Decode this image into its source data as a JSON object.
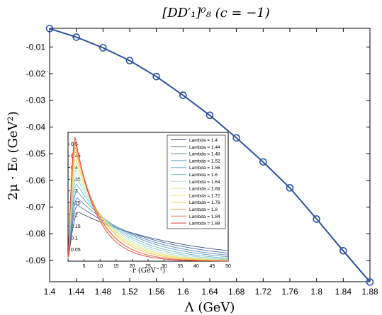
{
  "chart_data": [
    {
      "type": "line",
      "title": "[DD′₁]⁰₈ (c = −1)",
      "xlabel": "Λ (GeV)",
      "ylabel": "2μ · E₀ (GeV²)",
      "xlim": [
        1.4,
        1.88
      ],
      "ylim": [
        -0.098,
        -0.003
      ],
      "xticks": [
        "1.4",
        "1.44",
        "1.48",
        "1.52",
        "1.56",
        "1.6",
        "1.64",
        "1.68",
        "1.72",
        "1.76",
        "1.8",
        "1.84",
        "1.88"
      ],
      "yticks": [
        "-0.01",
        "-0.02",
        "-0.03",
        "-0.04",
        "-0.05",
        "-0.06",
        "-0.07",
        "-0.08",
        "-0.09"
      ],
      "yticks_values": [
        -0.01,
        -0.02,
        -0.03,
        -0.04,
        -0.05,
        -0.06,
        -0.07,
        -0.08,
        -0.09
      ],
      "line_color": "#2b4fa3",
      "marker": "open circle",
      "x": [
        1.4,
        1.44,
        1.48,
        1.52,
        1.56,
        1.6,
        1.64,
        1.68,
        1.72,
        1.76,
        1.8,
        1.84,
        1.88
      ],
      "y": [
        -0.0031,
        -0.0063,
        -0.0103,
        -0.0151,
        -0.0211,
        -0.0281,
        -0.0356,
        -0.0441,
        -0.0531,
        -0.0628,
        -0.0745,
        -0.0864,
        -0.0981
      ]
    },
    {
      "type": "line",
      "title": "",
      "xlabel": "r (GeV⁻¹)",
      "ylabel": "",
      "xlim": [
        0,
        50
      ],
      "ylim": [
        0,
        0.55
      ],
      "xticks": [
        "5",
        "10",
        "15",
        "20",
        "25",
        "30",
        "35",
        "40",
        "45",
        "50"
      ],
      "xticks_values": [
        5,
        10,
        15,
        20,
        25,
        30,
        35,
        40,
        45,
        50
      ],
      "yticks": [
        "0.05",
        "0.1",
        "0.15",
        "0.2",
        "0.25",
        "0.3",
        "0.35",
        "0.4",
        "0.45",
        "0.5"
      ],
      "yticks_values": [
        0.05,
        0.1,
        0.15,
        0.2,
        0.25,
        0.3,
        0.35,
        0.4,
        0.45,
        0.5
      ],
      "legend_position": "top-right",
      "series": [
        {
          "name": "Lambda = 1.4",
          "color": "#3b4f7c",
          "peak_x": 3.2,
          "peak_y": 0.21,
          "y_at_50": 0.045
        },
        {
          "name": "Lambda = 1.44",
          "color": "#4a6b9e",
          "peak_x": 3.0,
          "peak_y": 0.24,
          "y_at_50": 0.035
        },
        {
          "name": "Lambda = 1.48",
          "color": "#5483b5",
          "peak_x": 2.9,
          "peak_y": 0.27,
          "y_at_50": 0.026
        },
        {
          "name": "Lambda = 1.52",
          "color": "#5f9cc4",
          "peak_x": 2.8,
          "peak_y": 0.3,
          "y_at_50": 0.019
        },
        {
          "name": "Lambda = 1.56",
          "color": "#6fb6cc",
          "peak_x": 2.7,
          "peak_y": 0.33,
          "y_at_50": 0.013
        },
        {
          "name": "Lambda = 1.6",
          "color": "#8fcfcf",
          "peak_x": 2.6,
          "peak_y": 0.36,
          "y_at_50": 0.009
        },
        {
          "name": "Lambda = 1.64",
          "color": "#b4ddbf",
          "peak_x": 2.55,
          "peak_y": 0.39,
          "y_at_50": 0.006
        },
        {
          "name": "Lambda = 1.68",
          "color": "#d9e79a",
          "peak_x": 2.5,
          "peak_y": 0.42,
          "y_at_50": 0.004
        },
        {
          "name": "Lambda = 1.72",
          "color": "#f2e15e",
          "peak_x": 2.45,
          "peak_y": 0.44,
          "y_at_50": 0.003
        },
        {
          "name": "Lambda = 1.76",
          "color": "#f7c24b",
          "peak_x": 2.4,
          "peak_y": 0.47,
          "y_at_50": 0.002
        },
        {
          "name": "Lambda = 1.8",
          "color": "#f59b45",
          "peak_x": 2.35,
          "peak_y": 0.49,
          "y_at_50": 0.001
        },
        {
          "name": "Lambda = 1.84",
          "color": "#ef7550",
          "peak_x": 2.3,
          "peak_y": 0.51,
          "y_at_50": 0.001
        },
        {
          "name": "Lambda = 1.88",
          "color": "#e03a3a",
          "peak_x": 2.25,
          "peak_y": 0.53,
          "y_at_50": 0.0005
        }
      ]
    }
  ]
}
